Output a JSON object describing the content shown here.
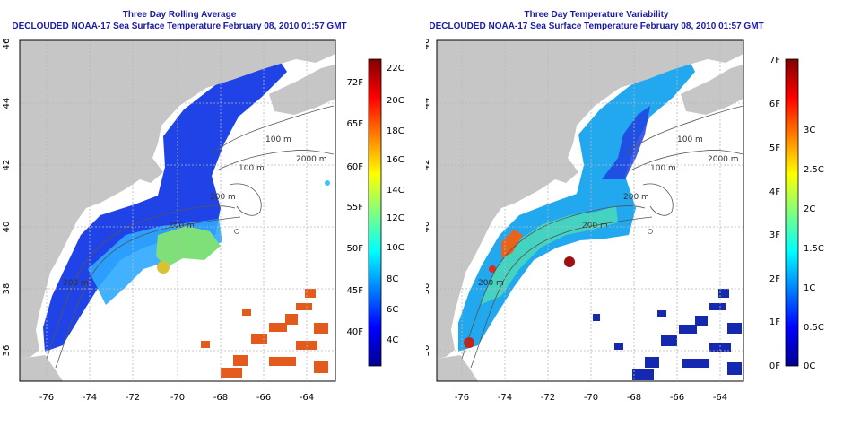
{
  "colors": {
    "land": "#c6c6c6",
    "ocean": "#ffffff",
    "title": "#1a1aa8",
    "grid": "#b8b8b8",
    "contour": "#555555",
    "colormap": "jet"
  },
  "icons": [
    "land-mask",
    "bathymetry-contours",
    "color-scale-bar"
  ],
  "map_extent": {
    "lon": [
      -77,
      -63
    ],
    "lat": [
      35,
      46
    ]
  },
  "lon_ticks": [
    "-76",
    "-74",
    "-72",
    "-70",
    "-68",
    "-66",
    "-64"
  ],
  "lat_ticks": [
    "36",
    "38",
    "40",
    "42",
    "44",
    "46"
  ],
  "contour_labels": [
    "100 m",
    "2000 m",
    "100 m",
    "200 m",
    "200 m",
    "200 m"
  ],
  "left_panel": {
    "title_line1": "Three Day Rolling Average",
    "title_line2": "DECLOUDED NOAA-17 Sea Surface Temperature February 08, 2010 01:57 GMT",
    "colorbar": {
      "left_labels": [
        "72F",
        "65F",
        "60F",
        "55F",
        "50F",
        "45F",
        "40F"
      ],
      "right_labels": [
        "22C",
        "20C",
        "18C",
        "16C",
        "14C",
        "12C",
        "10C",
        "8C",
        "6C",
        "4C"
      ]
    }
  },
  "right_panel": {
    "title_line1": "Three Day Temperature Variability",
    "title_line2": "DECLOUDED NOAA-17 Sea Surface Temperature February 08, 2010 01:57 GMT",
    "colorbar": {
      "left_labels": [
        "7F",
        "6F",
        "5F",
        "4F",
        "3F",
        "2F",
        "1F",
        "0F"
      ],
      "right_labels": [
        "3C",
        "2.5C",
        "2C",
        "1.5C",
        "1C",
        "0.5C",
        "0C"
      ]
    }
  }
}
